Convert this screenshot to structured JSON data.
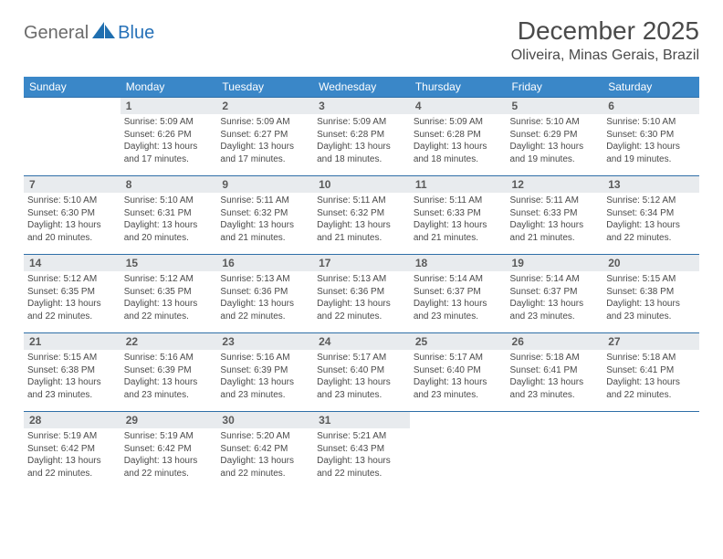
{
  "logo": {
    "general": "General",
    "blue": "Blue"
  },
  "title": "December 2025",
  "location": "Oliveira, Minas Gerais, Brazil",
  "colors": {
    "header_bg": "#3a87c8",
    "daynum_bg": "#e8ebee",
    "rule": "#2f6fa8",
    "text": "#4a4a4a",
    "logo_gray": "#6b6b6b",
    "logo_blue": "#2671b8"
  },
  "weekdays": [
    "Sunday",
    "Monday",
    "Tuesday",
    "Wednesday",
    "Thursday",
    "Friday",
    "Saturday"
  ],
  "weeks": [
    [
      null,
      {
        "n": "1",
        "sr": "5:09 AM",
        "ss": "6:26 PM",
        "dl": "13 hours and 17 minutes."
      },
      {
        "n": "2",
        "sr": "5:09 AM",
        "ss": "6:27 PM",
        "dl": "13 hours and 17 minutes."
      },
      {
        "n": "3",
        "sr": "5:09 AM",
        "ss": "6:28 PM",
        "dl": "13 hours and 18 minutes."
      },
      {
        "n": "4",
        "sr": "5:09 AM",
        "ss": "6:28 PM",
        "dl": "13 hours and 18 minutes."
      },
      {
        "n": "5",
        "sr": "5:10 AM",
        "ss": "6:29 PM",
        "dl": "13 hours and 19 minutes."
      },
      {
        "n": "6",
        "sr": "5:10 AM",
        "ss": "6:30 PM",
        "dl": "13 hours and 19 minutes."
      }
    ],
    [
      {
        "n": "7",
        "sr": "5:10 AM",
        "ss": "6:30 PM",
        "dl": "13 hours and 20 minutes."
      },
      {
        "n": "8",
        "sr": "5:10 AM",
        "ss": "6:31 PM",
        "dl": "13 hours and 20 minutes."
      },
      {
        "n": "9",
        "sr": "5:11 AM",
        "ss": "6:32 PM",
        "dl": "13 hours and 21 minutes."
      },
      {
        "n": "10",
        "sr": "5:11 AM",
        "ss": "6:32 PM",
        "dl": "13 hours and 21 minutes."
      },
      {
        "n": "11",
        "sr": "5:11 AM",
        "ss": "6:33 PM",
        "dl": "13 hours and 21 minutes."
      },
      {
        "n": "12",
        "sr": "5:11 AM",
        "ss": "6:33 PM",
        "dl": "13 hours and 21 minutes."
      },
      {
        "n": "13",
        "sr": "5:12 AM",
        "ss": "6:34 PM",
        "dl": "13 hours and 22 minutes."
      }
    ],
    [
      {
        "n": "14",
        "sr": "5:12 AM",
        "ss": "6:35 PM",
        "dl": "13 hours and 22 minutes."
      },
      {
        "n": "15",
        "sr": "5:12 AM",
        "ss": "6:35 PM",
        "dl": "13 hours and 22 minutes."
      },
      {
        "n": "16",
        "sr": "5:13 AM",
        "ss": "6:36 PM",
        "dl": "13 hours and 22 minutes."
      },
      {
        "n": "17",
        "sr": "5:13 AM",
        "ss": "6:36 PM",
        "dl": "13 hours and 22 minutes."
      },
      {
        "n": "18",
        "sr": "5:14 AM",
        "ss": "6:37 PM",
        "dl": "13 hours and 23 minutes."
      },
      {
        "n": "19",
        "sr": "5:14 AM",
        "ss": "6:37 PM",
        "dl": "13 hours and 23 minutes."
      },
      {
        "n": "20",
        "sr": "5:15 AM",
        "ss": "6:38 PM",
        "dl": "13 hours and 23 minutes."
      }
    ],
    [
      {
        "n": "21",
        "sr": "5:15 AM",
        "ss": "6:38 PM",
        "dl": "13 hours and 23 minutes."
      },
      {
        "n": "22",
        "sr": "5:16 AM",
        "ss": "6:39 PM",
        "dl": "13 hours and 23 minutes."
      },
      {
        "n": "23",
        "sr": "5:16 AM",
        "ss": "6:39 PM",
        "dl": "13 hours and 23 minutes."
      },
      {
        "n": "24",
        "sr": "5:17 AM",
        "ss": "6:40 PM",
        "dl": "13 hours and 23 minutes."
      },
      {
        "n": "25",
        "sr": "5:17 AM",
        "ss": "6:40 PM",
        "dl": "13 hours and 23 minutes."
      },
      {
        "n": "26",
        "sr": "5:18 AM",
        "ss": "6:41 PM",
        "dl": "13 hours and 23 minutes."
      },
      {
        "n": "27",
        "sr": "5:18 AM",
        "ss": "6:41 PM",
        "dl": "13 hours and 22 minutes."
      }
    ],
    [
      {
        "n": "28",
        "sr": "5:19 AM",
        "ss": "6:42 PM",
        "dl": "13 hours and 22 minutes."
      },
      {
        "n": "29",
        "sr": "5:19 AM",
        "ss": "6:42 PM",
        "dl": "13 hours and 22 minutes."
      },
      {
        "n": "30",
        "sr": "5:20 AM",
        "ss": "6:42 PM",
        "dl": "13 hours and 22 minutes."
      },
      {
        "n": "31",
        "sr": "5:21 AM",
        "ss": "6:43 PM",
        "dl": "13 hours and 22 minutes."
      },
      null,
      null,
      null
    ]
  ],
  "labels": {
    "sunrise": "Sunrise:",
    "sunset": "Sunset:",
    "daylight": "Daylight:"
  }
}
